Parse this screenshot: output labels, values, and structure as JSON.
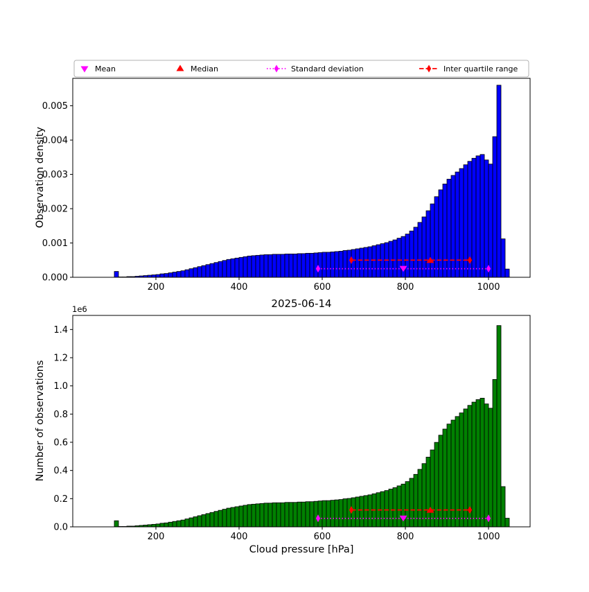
{
  "figure": {
    "title": "2025-06-14",
    "xlabel": "Cloud pressure [hPa]",
    "offset_text": "1e6"
  },
  "legend": {
    "items": [
      {
        "label": "Mean",
        "marker": "triangle-down",
        "color": "#FF00FF"
      },
      {
        "label": "Median",
        "marker": "triangle-up",
        "color": "#FF0000"
      },
      {
        "label": "Standard deviation",
        "marker": "diamond-dotted-line",
        "color": "#FF00FF"
      },
      {
        "label": "Inter quartile range",
        "marker": "diamond-dashed-line",
        "color": "#FF0000"
      }
    ]
  },
  "stats": {
    "mean": 795,
    "median": 860,
    "std_low": 590,
    "std_high": 1000,
    "q1": 670,
    "q3": 955
  },
  "chart_data": [
    {
      "type": "bar",
      "title": "",
      "ylabel": "Observation density",
      "bar_color": "#0000FF",
      "edge_color": "#000000",
      "bin_start": 100,
      "bin_width": 10,
      "xlim": [
        0,
        1100
      ],
      "ylim": [
        0,
        0.0058
      ],
      "x_ticks": [
        200,
        400,
        600,
        800,
        1000
      ],
      "y_ticks": [
        0,
        0.001,
        0.002,
        0.003,
        0.004,
        0.005
      ],
      "y_tick_labels": [
        "0.000",
        "0.001",
        "0.002",
        "0.003",
        "0.004",
        "0.005"
      ],
      "grid": false,
      "values": [
        0.00017,
        1e-05,
        1e-05,
        2e-05,
        2e-05,
        3e-05,
        4e-05,
        5e-05,
        6e-05,
        7e-05,
        8e-05,
        0.0001,
        0.00011,
        0.00013,
        0.00015,
        0.00017,
        0.00019,
        0.00022,
        0.00025,
        0.00028,
        0.00031,
        0.00034,
        0.00037,
        0.0004,
        0.00043,
        0.00046,
        0.00049,
        0.00052,
        0.00054,
        0.00056,
        0.00058,
        0.0006,
        0.00062,
        0.00063,
        0.00064,
        0.00065,
        0.00066,
        0.00066,
        0.00067,
        0.00067,
        0.00067,
        0.00068,
        0.00068,
        0.00068,
        0.00069,
        0.00069,
        0.0007,
        0.0007,
        0.00071,
        0.00072,
        0.00073,
        0.00073,
        0.00074,
        0.00075,
        0.00076,
        0.00078,
        0.00079,
        0.00081,
        0.00083,
        0.00085,
        0.00087,
        0.00089,
        0.00092,
        0.00095,
        0.00098,
        0.00101,
        0.00105,
        0.00109,
        0.00114,
        0.00119,
        0.00126,
        0.00135,
        0.00146,
        0.0016,
        0.00176,
        0.00194,
        0.00214,
        0.00235,
        0.00255,
        0.00272,
        0.00286,
        0.00297,
        0.00307,
        0.00317,
        0.00328,
        0.00338,
        0.00347,
        0.00354,
        0.00358,
        0.00342,
        0.0033,
        0.0041,
        0.0056,
        0.00112,
        0.00024
      ],
      "markers": {
        "mean_y": 0.00025,
        "median_y": 0.0005,
        "std_y": 0.00025,
        "iqr_y": 0.0005
      }
    },
    {
      "type": "bar",
      "title": "",
      "ylabel": "Number of observations",
      "bar_color": "#008000",
      "edge_color": "#000000",
      "bin_start": 100,
      "bin_width": 10,
      "xlim": [
        0,
        1100
      ],
      "ylim": [
        0,
        1500000
      ],
      "x_ticks": [
        200,
        400,
        600,
        800,
        1000
      ],
      "y_ticks": [
        0,
        200000,
        400000,
        600000,
        800000,
        1000000,
        1200000,
        1400000
      ],
      "y_tick_labels": [
        "0.0",
        "0.2",
        "0.4",
        "0.6",
        "0.8",
        "1.0",
        "1.2",
        "1.4"
      ],
      "grid": false,
      "values": [
        43350,
        2550,
        2550,
        5100,
        5100,
        7650,
        10200,
        12750,
        15300,
        17850,
        20400,
        25500,
        28050,
        33150,
        38250,
        43350,
        48450,
        56100,
        63750,
        71400,
        79050,
        86700,
        94350,
        102000,
        109650,
        117300,
        124950,
        132600,
        137700,
        142800,
        147900,
        153000,
        158100,
        160650,
        163200,
        165750,
        168300,
        168300,
        170850,
        170850,
        170850,
        173400,
        173400,
        173400,
        175950,
        175950,
        178500,
        178500,
        181050,
        183600,
        186150,
        186150,
        188700,
        191250,
        193800,
        198900,
        201450,
        206550,
        211650,
        216750,
        221850,
        226950,
        234600,
        242250,
        249900,
        257550,
        267750,
        277950,
        290700,
        303450,
        321300,
        344250,
        372300,
        408000,
        448800,
        494700,
        545700,
        599250,
        650250,
        693600,
        729300,
        757350,
        782850,
        808350,
        836400,
        861900,
        884850,
        902700,
        912900,
        872100,
        841500,
        1045500,
        1428000,
        285600,
        61200
      ],
      "markers": {
        "mean_y": 60000,
        "median_y": 120000,
        "std_y": 60000,
        "iqr_y": 120000
      }
    }
  ]
}
